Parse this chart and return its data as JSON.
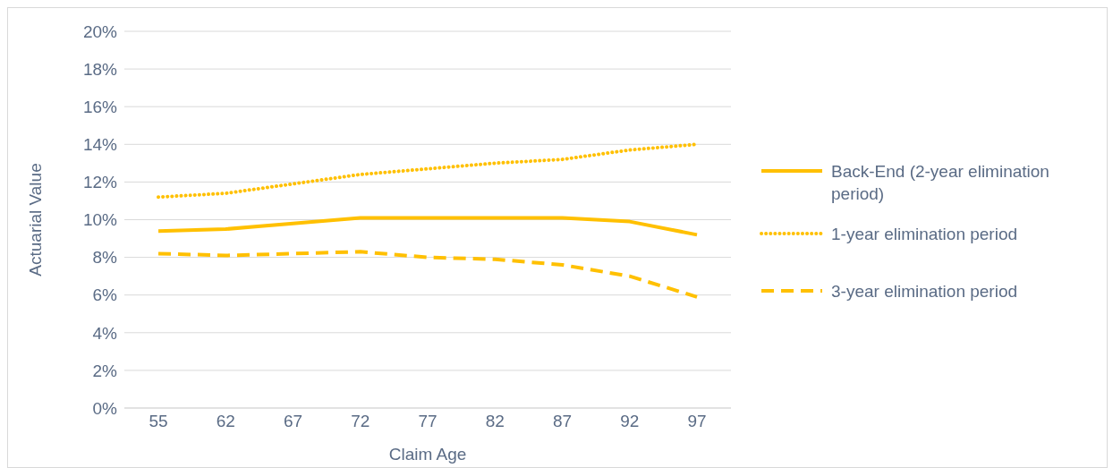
{
  "chart_data": {
    "type": "line",
    "xlabel": "Claim Age",
    "ylabel": "Actuarial Value",
    "categories": [
      "55",
      "62",
      "67",
      "72",
      "77",
      "82",
      "87",
      "92",
      "97"
    ],
    "series": [
      {
        "name": "Back-End (2-year elimination period)",
        "color": "#ffc000",
        "line_style": "solid",
        "values": [
          9.4,
          9.5,
          9.8,
          10.1,
          10.1,
          10.1,
          10.1,
          9.9,
          9.2
        ]
      },
      {
        "name": "1-year elimination period",
        "color": "#ffc000",
        "line_style": "dotted",
        "values": [
          11.2,
          11.4,
          11.9,
          12.4,
          12.7,
          13.0,
          13.2,
          13.7,
          14.0
        ]
      },
      {
        "name": "3-year elimination period",
        "color": "#ffc000",
        "line_style": "dashed",
        "values": [
          8.2,
          8.1,
          8.2,
          8.3,
          8.0,
          7.9,
          7.6,
          7.0,
          5.9
        ]
      }
    ],
    "ylim": [
      0,
      20
    ],
    "yticks": [
      {
        "value": 0,
        "label": "0%"
      },
      {
        "value": 2,
        "label": "2%"
      },
      {
        "value": 4,
        "label": "4%"
      },
      {
        "value": 6,
        "label": "6%"
      },
      {
        "value": 8,
        "label": "8%"
      },
      {
        "value": 10,
        "label": "10%"
      },
      {
        "value": 12,
        "label": "12%"
      },
      {
        "value": 14,
        "label": "14%"
      },
      {
        "value": 16,
        "label": "16%"
      },
      {
        "value": 18,
        "label": "18%"
      },
      {
        "value": 20,
        "label": "20%"
      }
    ],
    "grid": "y",
    "legend": "right",
    "marker": "none"
  }
}
